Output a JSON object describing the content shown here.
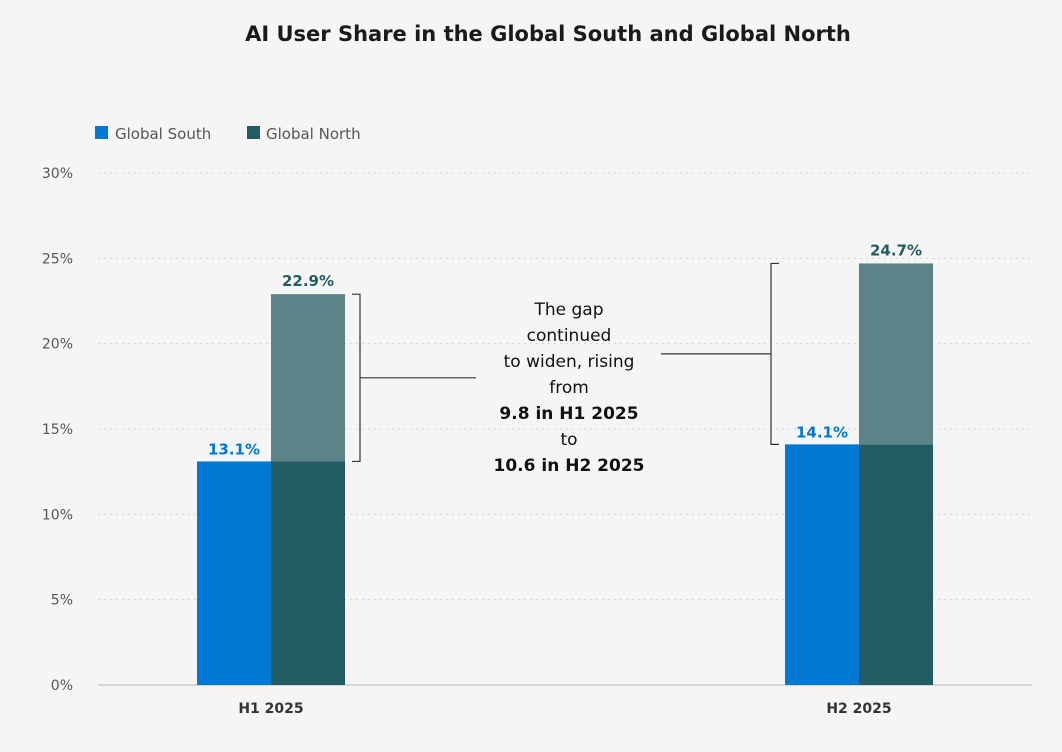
{
  "chart_data": {
    "type": "bar",
    "title": "AI User Share in the Global South and Global North",
    "categories": [
      "H1 2025",
      "H2 2025"
    ],
    "series": [
      {
        "name": "Global South",
        "values": [
          13.1,
          14.1
        ],
        "color": "#0078d4",
        "label_color": "#0078d4"
      },
      {
        "name": "Global North",
        "values": [
          22.9,
          24.7
        ],
        "color": "#235b63",
        "top_color": "#5b8388",
        "label_color": "#235b63"
      }
    ],
    "value_labels": [
      [
        "13.1%",
        "14.1%"
      ],
      [
        "22.9%",
        "24.7%"
      ]
    ],
    "ylim": [
      0,
      30
    ],
    "yticks": [
      0,
      5,
      10,
      15,
      20,
      25,
      30
    ],
    "ytick_labels": [
      "0%",
      "5%",
      "10%",
      "15%",
      "20%",
      "25%",
      "30%"
    ],
    "xlabel": "",
    "ylabel": "",
    "grid": true,
    "legend_position": "top-left",
    "annotation": {
      "lines": [
        {
          "text": "The gap",
          "bold": false
        },
        {
          "text": "continued",
          "bold": false
        },
        {
          "text": "to widen, rising",
          "bold": false
        },
        {
          "text": "from",
          "bold": false
        },
        {
          "text": "9.8 in H1 2025",
          "bold": true
        },
        {
          "text": "to",
          "bold": false
        },
        {
          "text": "10.6 in H2 2025",
          "bold": true
        }
      ]
    }
  }
}
